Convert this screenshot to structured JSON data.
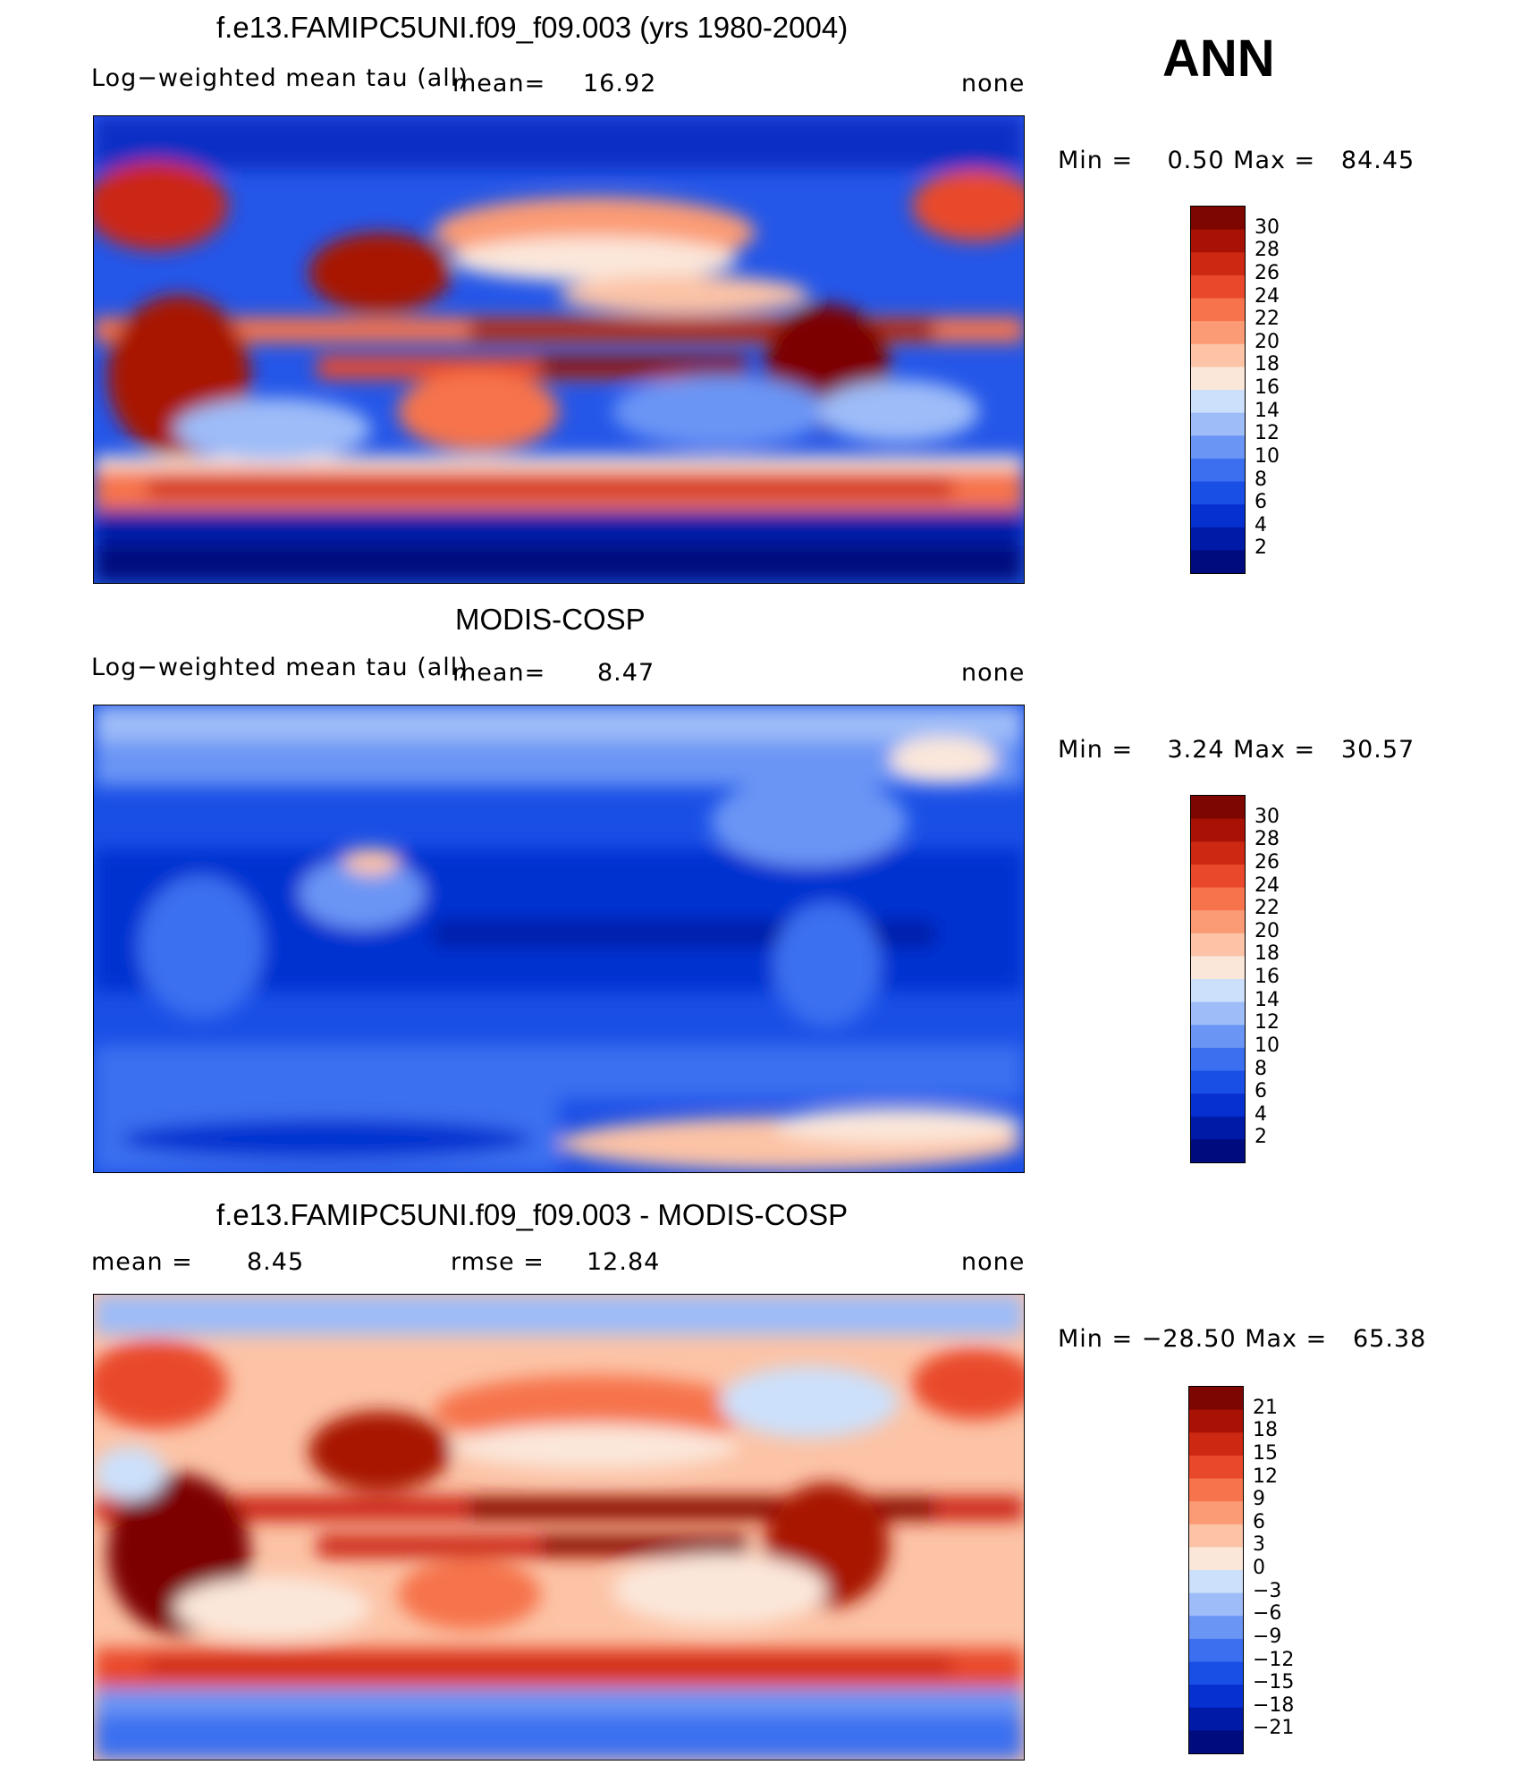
{
  "season": "ANN",
  "panels": [
    {
      "id": "model",
      "title": "f.e13.FAMIPC5UNI.f09_f09.003 (yrs 1980-2004)",
      "left_text": "Log−weighted mean tau (all)",
      "mean_text": "mean=",
      "mean_value": "16.92",
      "right_text": "none",
      "minmax_text": "Min =    0.50 Max =   84.45"
    },
    {
      "id": "obs",
      "title": "MODIS-COSP",
      "left_text": "Log−weighted mean tau (all)",
      "mean_text": "mean=",
      "mean_value": "8.47",
      "right_text": "none",
      "minmax_text": "Min =    3.24 Max =   30.57"
    },
    {
      "id": "diff",
      "title": "f.e13.FAMIPC5UNI.f09_f09.003 - MODIS-COSP",
      "mean_text": "mean =",
      "mean_value": "8.45",
      "rmse_text": "rmse =",
      "rmse_value": "12.84",
      "right_text": "none",
      "minmax_text": "Min = −28.50 Max =   65.38"
    }
  ],
  "chart_data": [
    {
      "type": "heatmap",
      "title": "f.e13.FAMIPC5UNI.f09_f09.003 (yrs 1980-2004)",
      "variable": "Log-weighted mean tau (all)",
      "units": "none",
      "mean": 16.92,
      "min": 0.5,
      "max": 84.45,
      "colorbar_levels": [
        2,
        4,
        6,
        8,
        10,
        12,
        14,
        16,
        18,
        20,
        22,
        24,
        26,
        28,
        30
      ],
      "colorbar_colors": [
        "#000c7d",
        "#001aa8",
        "#0630d0",
        "#1a4fe6",
        "#3b6ff0",
        "#6a95f5",
        "#9dbcf8",
        "#cce0fb",
        "#fbe7da",
        "#fcc3a6",
        "#fb9b75",
        "#f6734b",
        "#e9492a",
        "#cc2812",
        "#a81204",
        "#7d0601"
      ],
      "colorbar_labels": [
        "30",
        "28",
        "26",
        "24",
        "22",
        "20",
        "18",
        "16",
        "14",
        "12",
        "10",
        "8",
        "6",
        "4",
        "2"
      ]
    },
    {
      "type": "heatmap",
      "title": "MODIS-COSP",
      "variable": "Log-weighted mean tau (all)",
      "units": "none",
      "mean": 8.47,
      "min": 3.24,
      "max": 30.57,
      "colorbar_levels": [
        2,
        4,
        6,
        8,
        10,
        12,
        14,
        16,
        18,
        20,
        22,
        24,
        26,
        28,
        30
      ],
      "colorbar_colors": [
        "#000c7d",
        "#001aa8",
        "#0630d0",
        "#1a4fe6",
        "#3b6ff0",
        "#6a95f5",
        "#9dbcf8",
        "#cce0fb",
        "#fbe7da",
        "#fcc3a6",
        "#fb9b75",
        "#f6734b",
        "#e9492a",
        "#cc2812",
        "#a81204",
        "#7d0601"
      ],
      "colorbar_labels": [
        "30",
        "28",
        "26",
        "24",
        "22",
        "20",
        "18",
        "16",
        "14",
        "12",
        "10",
        "8",
        "6",
        "4",
        "2"
      ]
    },
    {
      "type": "heatmap",
      "title": "f.e13.FAMIPC5UNI.f09_f09.003 - MODIS-COSP",
      "variable": "difference",
      "units": "none",
      "mean": 8.45,
      "rmse": 12.84,
      "min": -28.5,
      "max": 65.38,
      "colorbar_levels": [
        -21,
        -18,
        -15,
        -12,
        -9,
        -6,
        -3,
        0,
        3,
        6,
        9,
        12,
        15,
        18,
        21
      ],
      "colorbar_colors": [
        "#000c7d",
        "#001aa8",
        "#0630d0",
        "#1a4fe6",
        "#3b6ff0",
        "#6a95f5",
        "#9dbcf8",
        "#cce0fb",
        "#fbe7da",
        "#fcc3a6",
        "#fb9b75",
        "#f6734b",
        "#e9492a",
        "#cc2812",
        "#a81204",
        "#7d0601"
      ],
      "colorbar_labels": [
        "21",
        "18",
        "15",
        "12",
        "9",
        "6",
        "3",
        "0",
        "−3",
        "−6",
        "−9",
        "−12",
        "−15",
        "−18",
        "−21"
      ]
    }
  ],
  "colors": {
    "deep_blue": "#000c7d",
    "mid_blue": "#1a4fe6",
    "light_blue": "#cce0fb",
    "light_peach": "#fbe7da",
    "orange": "#f6734b",
    "dark_red": "#7d0601"
  }
}
